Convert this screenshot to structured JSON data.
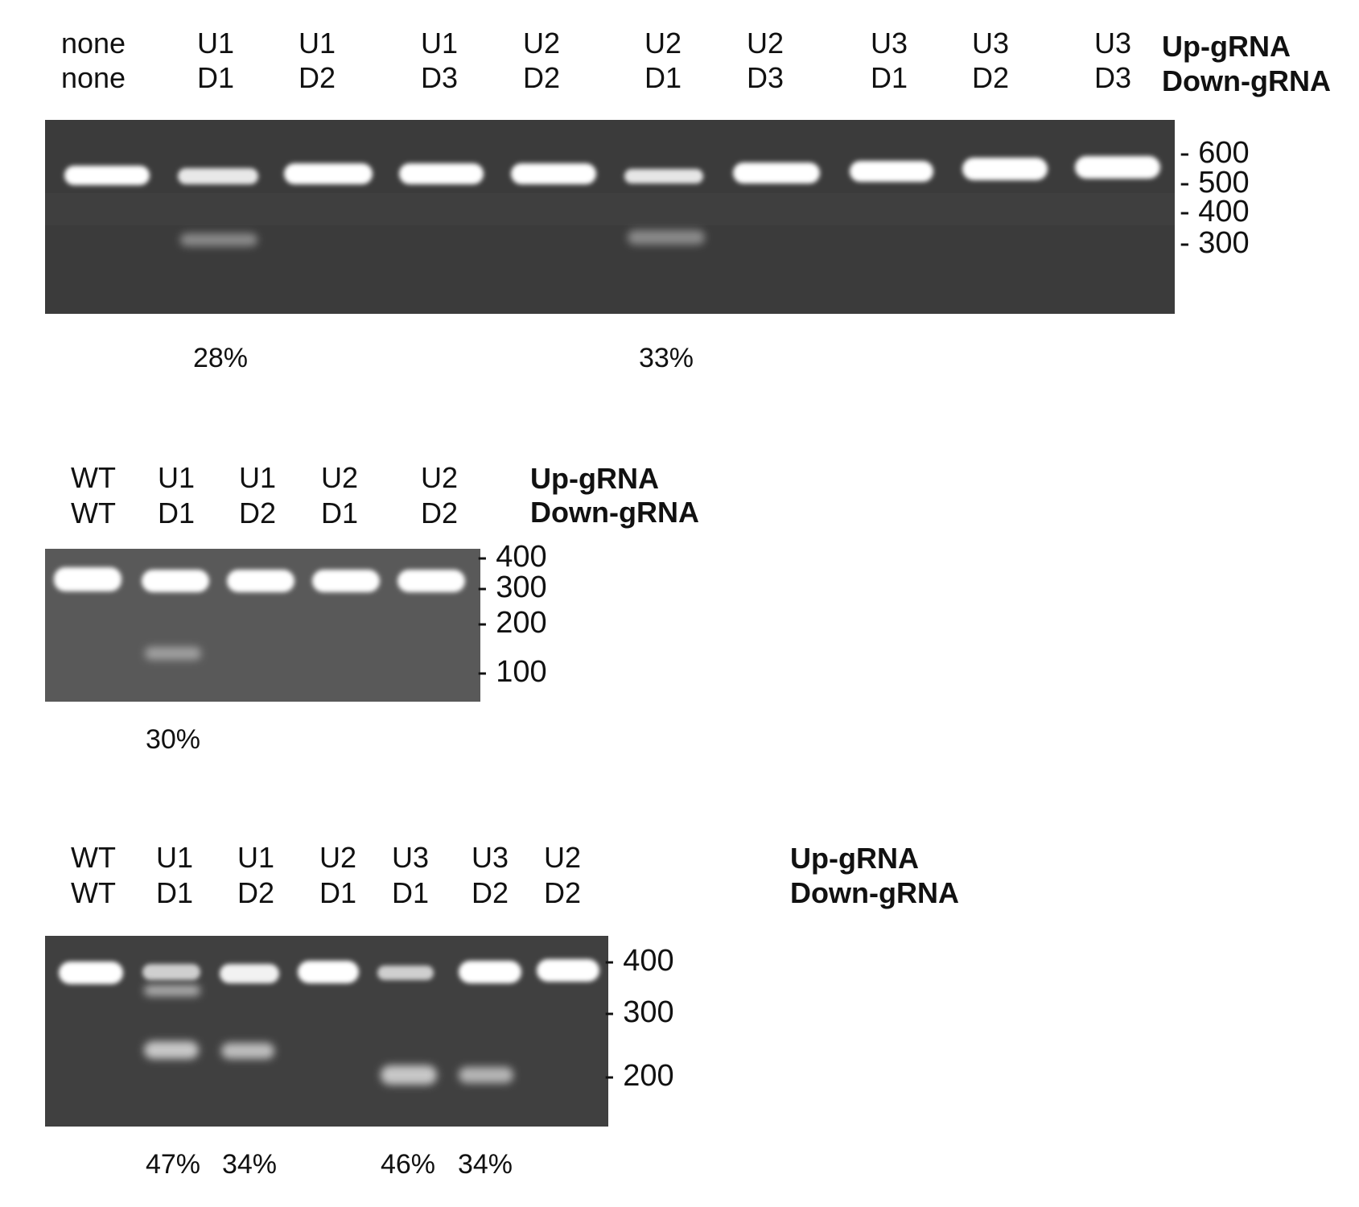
{
  "gels": [
    {
      "row_titles": [
        "Up-gRNA",
        "Down-gRNA"
      ],
      "background": "#3b3b3b",
      "lanes": [
        {
          "up": "none",
          "down": "none"
        },
        {
          "up": "U1",
          "down": "D1"
        },
        {
          "up": "U1",
          "down": "D2"
        },
        {
          "up": "U1",
          "down": "D3"
        },
        {
          "up": "U2",
          "down": "D2"
        },
        {
          "up": "U2",
          "down": "D1"
        },
        {
          "up": "U2",
          "down": "D3"
        },
        {
          "up": "U3",
          "down": "D1"
        },
        {
          "up": "U3",
          "down": "D2"
        },
        {
          "up": "U3",
          "down": "D3"
        }
      ],
      "markers": [
        "- 600",
        "- 500",
        "- 400",
        "- 300"
      ],
      "percentages": [
        {
          "lane": 1,
          "text": "28%"
        },
        {
          "lane": 5,
          "text": "33%"
        }
      ]
    },
    {
      "row_titles": [
        "Up-gRNA",
        "Down-gRNA"
      ],
      "background": "#595959",
      "lanes": [
        {
          "up": "WT",
          "down": "WT"
        },
        {
          "up": "U1",
          "down": "D1"
        },
        {
          "up": "U1",
          "down": "D2"
        },
        {
          "up": "U2",
          "down": "D1"
        },
        {
          "up": "U2",
          "down": "D2"
        }
      ],
      "markers": [
        "- 400",
        "- 300",
        "- 200",
        "- 100"
      ],
      "percentages": [
        {
          "lane": 1,
          "text": "30%"
        }
      ]
    },
    {
      "row_titles": [
        "Up-gRNA",
        "Down-gRNA"
      ],
      "background": "#404040",
      "lanes": [
        {
          "up": "WT",
          "down": "WT"
        },
        {
          "up": "U1",
          "down": "D1"
        },
        {
          "up": "U1",
          "down": "D2"
        },
        {
          "up": "U2",
          "down": "D1"
        },
        {
          "up": "U3",
          "down": "D1"
        },
        {
          "up": "U3",
          "down": "D2"
        },
        {
          "up": "U2",
          "down": "D2"
        }
      ],
      "markers": [
        "- 400",
        "- 300",
        "- 200"
      ],
      "percentages": [
        {
          "lane": 1,
          "text": "47%"
        },
        {
          "lane": 2,
          "text": "34%"
        },
        {
          "lane": 4,
          "text": "46%"
        },
        {
          "lane": 5,
          "text": "34%"
        }
      ]
    }
  ]
}
